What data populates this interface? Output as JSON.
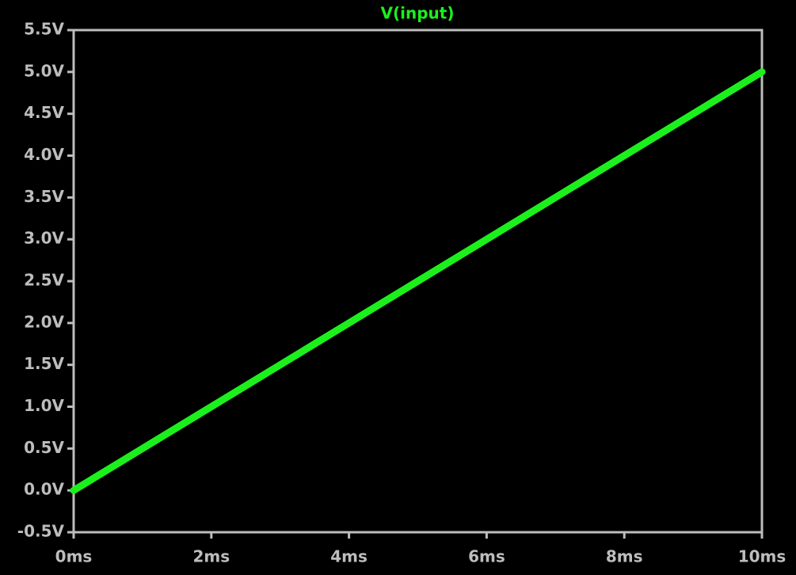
{
  "chart_data": {
    "type": "line",
    "x": [
      0,
      1,
      2,
      3,
      4,
      5,
      6,
      7,
      8,
      9,
      10
    ],
    "series": [
      {
        "name": "V(input)",
        "color": "#1cf01c",
        "values": [
          0,
          0.5,
          1.0,
          1.5,
          2.0,
          2.5,
          3.0,
          3.5,
          4.0,
          4.5,
          5.0
        ]
      }
    ],
    "xlim": [
      0,
      10
    ],
    "xticks": [
      {
        "value": 0,
        "label": "0ms"
      },
      {
        "value": 2,
        "label": "2ms"
      },
      {
        "value": 4,
        "label": "4ms"
      },
      {
        "value": 6,
        "label": "6ms"
      },
      {
        "value": 8,
        "label": "8ms"
      },
      {
        "value": 10,
        "label": "10ms"
      }
    ],
    "ylim": [
      -0.5,
      5.5
    ],
    "yticks": [
      {
        "value": -0.5,
        "label": "-0.5V"
      },
      {
        "value": 0,
        "label": "0.0V"
      },
      {
        "value": 0.5,
        "label": "0.5V"
      },
      {
        "value": 1.0,
        "label": "1.0V"
      },
      {
        "value": 1.5,
        "label": "1.5V"
      },
      {
        "value": 2.0,
        "label": "2.0V"
      },
      {
        "value": 2.5,
        "label": "2.5V"
      },
      {
        "value": 3.0,
        "label": "3.0V"
      },
      {
        "value": 3.5,
        "label": "3.5V"
      },
      {
        "value": 4.0,
        "label": "4.0V"
      },
      {
        "value": 4.5,
        "label": "4.5V"
      },
      {
        "value": 5.0,
        "label": "5.0V"
      },
      {
        "value": 5.5,
        "label": "5.5V"
      }
    ],
    "grid": false
  }
}
